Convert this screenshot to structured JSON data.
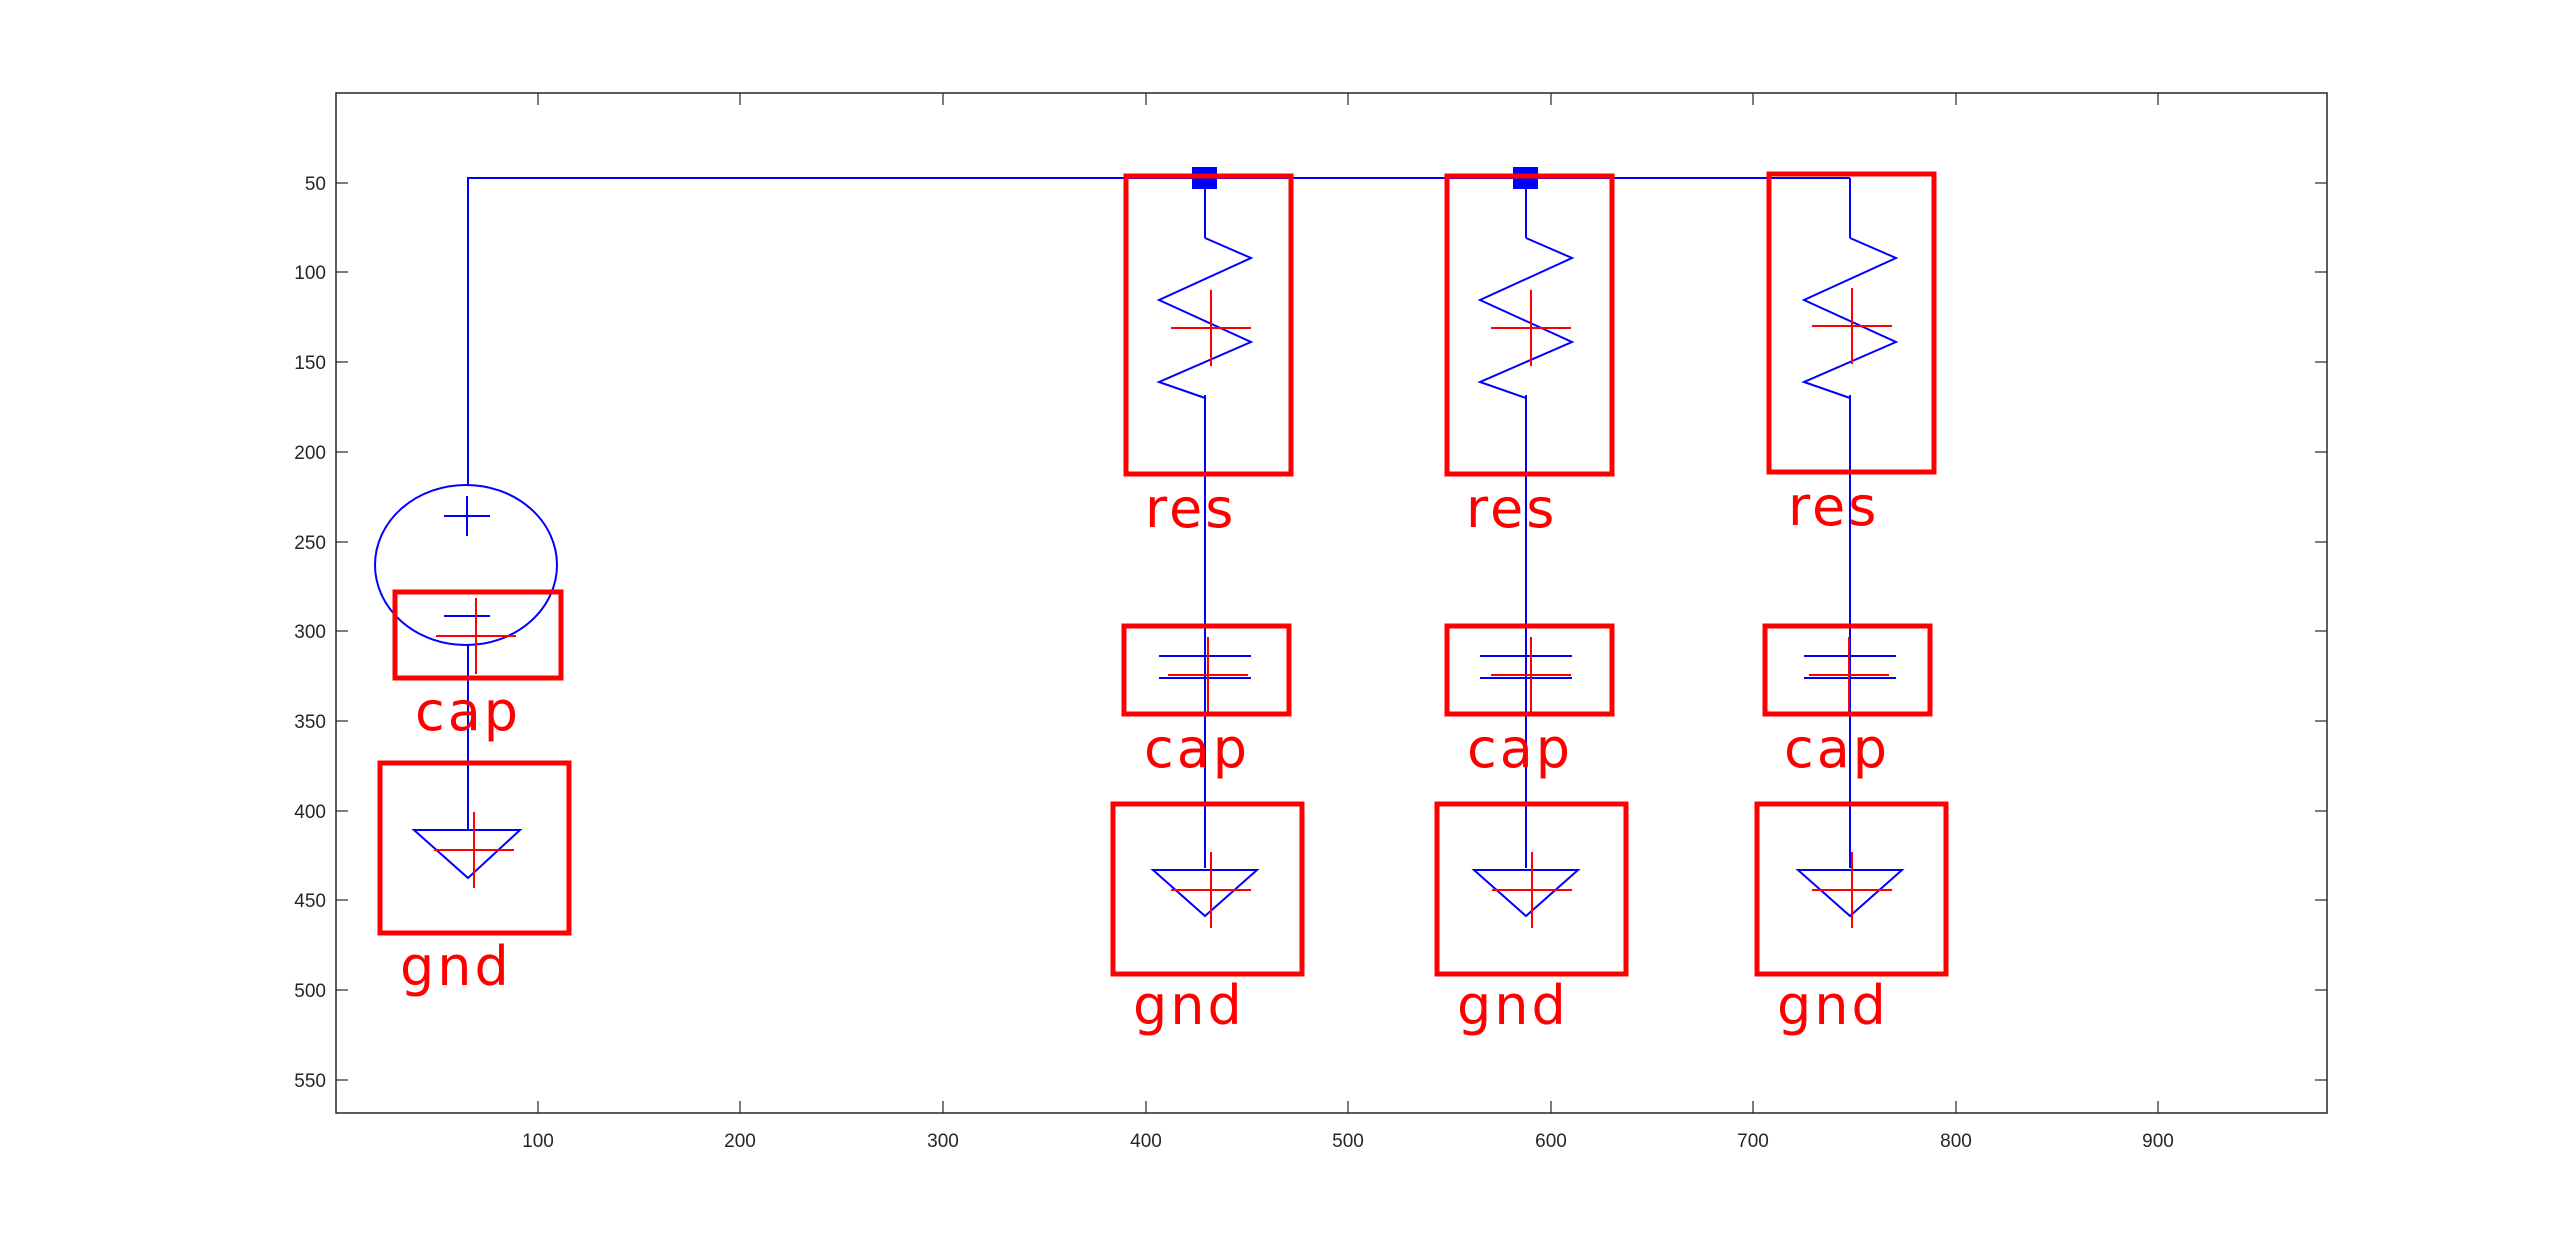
{
  "axes": {
    "x_ticks": [
      "100",
      "200",
      "300",
      "400",
      "500",
      "600",
      "700",
      "800",
      "900"
    ],
    "y_ticks": [
      "50",
      "100",
      "150",
      "200",
      "250",
      "300",
      "350",
      "400",
      "450",
      "500",
      "550"
    ]
  },
  "detections": [
    {
      "label": "cap",
      "column": 0
    },
    {
      "label": "gnd",
      "column": 0
    },
    {
      "label": "res",
      "column": 1
    },
    {
      "label": "cap",
      "column": 1
    },
    {
      "label": "gnd",
      "column": 1
    },
    {
      "label": "res",
      "column": 2
    },
    {
      "label": "cap",
      "column": 2
    },
    {
      "label": "gnd",
      "column": 2
    },
    {
      "label": "res",
      "column": 3
    },
    {
      "label": "cap",
      "column": 3
    },
    {
      "label": "gnd",
      "column": 3
    }
  ],
  "colors": {
    "circuit": "#0000ff",
    "detection": "#ff0000",
    "axis": "#262626",
    "junction": "#0000ff"
  }
}
